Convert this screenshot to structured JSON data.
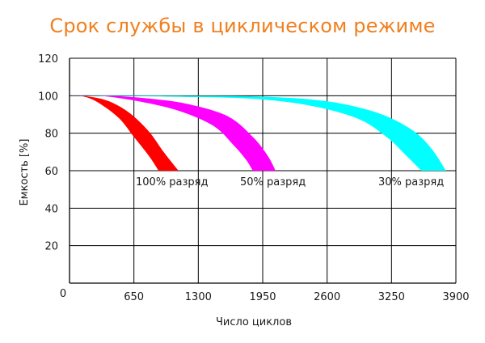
{
  "chart_data": {
    "type": "area",
    "title": "Срок службы в циклическом режиме",
    "xlabel": "Число циклов",
    "ylabel": "Емкость [%]",
    "xlim": [
      0,
      3900
    ],
    "ylim": [
      0,
      120
    ],
    "x_ticks": [
      "0",
      "650",
      "1300",
      "1950",
      "2600",
      "3250",
      "3900"
    ],
    "y_ticks": [
      "20",
      "40",
      "60",
      "80",
      "100",
      "120"
    ],
    "grid": true,
    "series": [
      {
        "name": "100% разряд",
        "color": "#ff0000",
        "upper": [
          [
            0,
            100
          ],
          [
            200,
            99.5
          ],
          [
            400,
            97
          ],
          [
            600,
            91
          ],
          [
            800,
            81
          ],
          [
            950,
            70
          ],
          [
            1100,
            60
          ]
        ],
        "lower": [
          [
            0,
            100
          ],
          [
            150,
            99.5
          ],
          [
            300,
            96
          ],
          [
            500,
            88
          ],
          [
            650,
            78
          ],
          [
            800,
            68
          ],
          [
            900,
            60
          ]
        ]
      },
      {
        "name": "50% разряд",
        "color": "#ff00ff",
        "upper": [
          [
            0,
            100
          ],
          [
            400,
            100
          ],
          [
            800,
            98.5
          ],
          [
            1200,
            95.5
          ],
          [
            1600,
            89
          ],
          [
            1850,
            78
          ],
          [
            2000,
            68
          ],
          [
            2080,
            60
          ]
        ],
        "lower": [
          [
            0,
            100
          ],
          [
            300,
            100
          ],
          [
            700,
            97
          ],
          [
            1100,
            92
          ],
          [
            1450,
            84
          ],
          [
            1650,
            74
          ],
          [
            1780,
            66
          ],
          [
            1850,
            60
          ]
        ]
      },
      {
        "name": "30% разряд",
        "color": "#00ffff",
        "upper": [
          [
            0,
            100
          ],
          [
            1000,
            100
          ],
          [
            1950,
            99.5
          ],
          [
            2600,
            97
          ],
          [
            3100,
            91
          ],
          [
            3450,
            82
          ],
          [
            3650,
            72
          ],
          [
            3800,
            60
          ]
        ],
        "lower": [
          [
            0,
            100
          ],
          [
            1000,
            99.5
          ],
          [
            1800,
            98.5
          ],
          [
            2400,
            95
          ],
          [
            2900,
            88
          ],
          [
            3200,
            78
          ],
          [
            3400,
            68
          ],
          [
            3550,
            60
          ]
        ]
      }
    ]
  },
  "labels": {
    "series1": "100% разряд",
    "series2": "50% разряд",
    "series3": "30% разряд"
  }
}
